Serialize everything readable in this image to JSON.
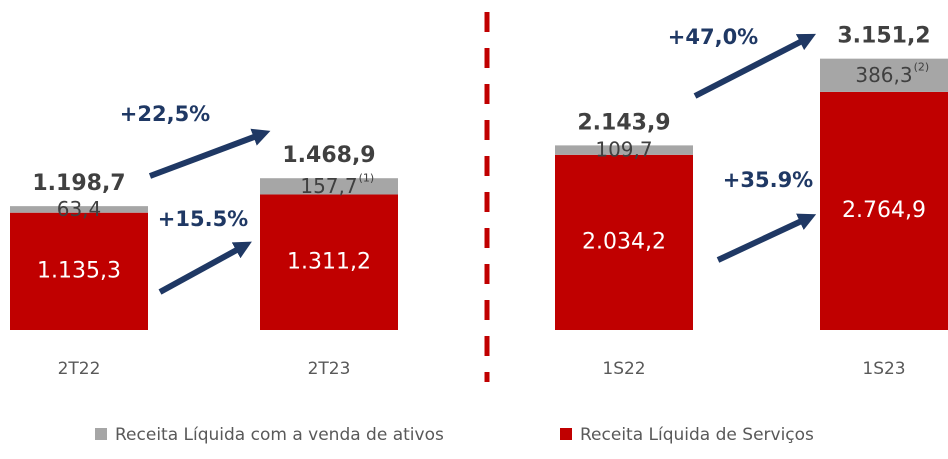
{
  "chart_data": [
    {
      "type": "bar",
      "stacked": true,
      "categories": [
        "2T22",
        "2T23"
      ],
      "ylim": [
        0,
        3000
      ],
      "series": [
        {
          "name": "Receita Líquida de Serviços",
          "color": "#c00000",
          "values": [
            1135.3,
            1311.2
          ],
          "value_labels": [
            "1.135,3",
            "1.311,2"
          ]
        },
        {
          "name": "Receita Líquida com a venda de ativos",
          "color": "#a6a6a6",
          "values": [
            63.4,
            157.7
          ],
          "value_labels": [
            "63,4",
            "157,7"
          ],
          "value_notes": [
            null,
            "(1)"
          ]
        }
      ],
      "totals": [
        1198.7,
        1468.9
      ],
      "total_labels": [
        "1.198,7",
        "1.468,9"
      ],
      "annotations": [
        "+22,5%",
        "+15.5%"
      ]
    },
    {
      "type": "bar",
      "stacked": true,
      "categories": [
        "1S22",
        "1S23"
      ],
      "ylim": [
        0,
        3600
      ],
      "series": [
        {
          "name": "Receita Líquida de Serviços",
          "color": "#c00000",
          "values": [
            2034.2,
            2764.9
          ],
          "value_labels": [
            "2.034,2",
            "2.764,9"
          ]
        },
        {
          "name": "Receita Líquida com a venda de ativos",
          "color": "#a6a6a6",
          "values": [
            109.7,
            386.3
          ],
          "value_labels": [
            "109,7",
            "386,3"
          ],
          "value_notes": [
            null,
            "(2)"
          ]
        }
      ],
      "totals": [
        2143.9,
        3151.2
      ],
      "total_labels": [
        "2.143,9",
        "3.151,2"
      ],
      "annotations": [
        "+47,0%",
        "+35.9%"
      ]
    }
  ]
}
